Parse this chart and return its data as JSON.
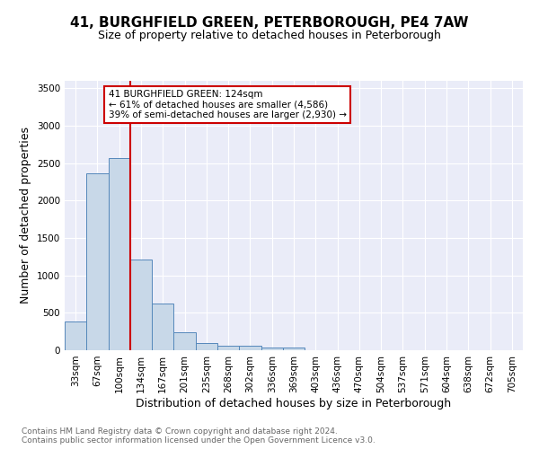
{
  "title1": "41, BURGHFIELD GREEN, PETERBOROUGH, PE4 7AW",
  "title2": "Size of property relative to detached houses in Peterborough",
  "xlabel": "Distribution of detached houses by size in Peterborough",
  "ylabel": "Number of detached properties",
  "bin_labels": [
    "33sqm",
    "67sqm",
    "100sqm",
    "134sqm",
    "167sqm",
    "201sqm",
    "235sqm",
    "268sqm",
    "302sqm",
    "336sqm",
    "369sqm",
    "403sqm",
    "436sqm",
    "470sqm",
    "504sqm",
    "537sqm",
    "571sqm",
    "604sqm",
    "638sqm",
    "672sqm",
    "705sqm"
  ],
  "bar_heights": [
    390,
    2370,
    2570,
    1210,
    625,
    245,
    95,
    60,
    55,
    35,
    35,
    0,
    0,
    0,
    0,
    0,
    0,
    0,
    0,
    0,
    0
  ],
  "bar_color": "#c8d8e8",
  "bar_edge_color": "#5588bb",
  "vline_color": "#cc0000",
  "annotation_text": "41 BURGHFIELD GREEN: 124sqm\n← 61% of detached houses are smaller (4,586)\n39% of semi-detached houses are larger (2,930) →",
  "annotation_box_color": "#ffffff",
  "annotation_box_edge": "#cc0000",
  "footer_text": "Contains HM Land Registry data © Crown copyright and database right 2024.\nContains public sector information licensed under the Open Government Licence v3.0.",
  "ylim": [
    0,
    3600
  ],
  "yticks": [
    0,
    500,
    1000,
    1500,
    2000,
    2500,
    3000,
    3500
  ],
  "background_color": "#eaecf8",
  "grid_color": "#ffffff",
  "title1_fontsize": 11,
  "title2_fontsize": 9,
  "ylabel_fontsize": 9,
  "xlabel_fontsize": 9,
  "tick_fontsize": 7.5,
  "footer_fontsize": 6.5,
  "footer_color": "#666666"
}
